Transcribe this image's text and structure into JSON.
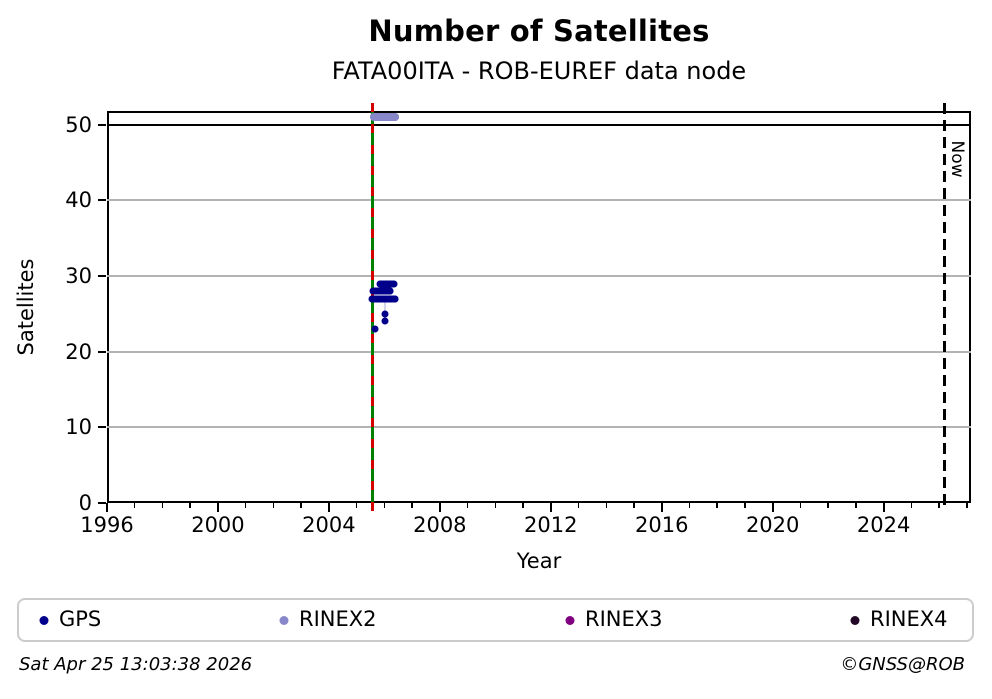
{
  "header": {
    "title": "Number of Satellites",
    "subtitle": "FATA00ITA - ROB-EUREF data node"
  },
  "chart_data": {
    "type": "scatter",
    "title": "Number of Satellites",
    "subtitle": "FATA00ITA - ROB-EUREF data node",
    "xlabel": "Year",
    "ylabel": "Satellites",
    "xlim": [
      1996,
      2027.15
    ],
    "ylim": [
      0,
      51.8
    ],
    "x_major_ticks": [
      1996,
      2000,
      2004,
      2008,
      2012,
      2016,
      2020,
      2024
    ],
    "x_minor_tick_step_years": 1,
    "y_ticks": [
      0,
      10,
      20,
      30,
      40,
      50
    ],
    "grid": "horizontal-gray-lines-only",
    "top_boundary_line_value": 50,
    "annotations": {
      "install_line": {
        "x": 2005.57,
        "style": "solid-green-with-red-dashes",
        "color_main": "#008000",
        "color_dash": "#d40000"
      },
      "now_line": {
        "x": 2026.2,
        "label": "Now",
        "style": "dashed-black",
        "color": "#000000"
      }
    },
    "series": [
      {
        "name": "GPS",
        "color": "#00008b",
        "marker": "dot",
        "marker_px": 7,
        "clusters": [
          {
            "y": 29,
            "x_from": 2005.85,
            "x_to": 2006.35
          },
          {
            "y": 28,
            "x_from": 2005.6,
            "x_to": 2006.23
          },
          {
            "y": 27,
            "x_from": 2005.56,
            "x_to": 2006.41
          }
        ],
        "points": [
          [
            2006.02,
            25
          ],
          [
            2006.02,
            24
          ],
          [
            2005.68,
            23
          ]
        ],
        "connector": {
          "x": 2006.02,
          "y_from": 27,
          "y_to": 24
        }
      },
      {
        "name": "RINEX2",
        "color": "#8787c9",
        "marker": "dot",
        "marker_px": 8,
        "clusters": [
          {
            "y": 51,
            "x_from": 2005.62,
            "x_to": 2006.4
          }
        ],
        "points": []
      },
      {
        "name": "RINEX3",
        "color": "#800080",
        "marker": "dot",
        "marker_px": 7,
        "clusters": [],
        "points": []
      },
      {
        "name": "RINEX4",
        "color": "#220726",
        "marker": "dot",
        "marker_px": 7,
        "clusters": [],
        "points": []
      }
    ]
  },
  "legend": {
    "items": [
      {
        "label": "GPS",
        "color": "#00008b"
      },
      {
        "label": "RINEX2",
        "color": "#8787c9"
      },
      {
        "label": "RINEX3",
        "color": "#800080"
      },
      {
        "label": "RINEX4",
        "color": "#220726"
      }
    ]
  },
  "footer": {
    "timestamp": "Sat Apr 25 13:03:38 2026",
    "credit": "©GNSS@ROB"
  }
}
